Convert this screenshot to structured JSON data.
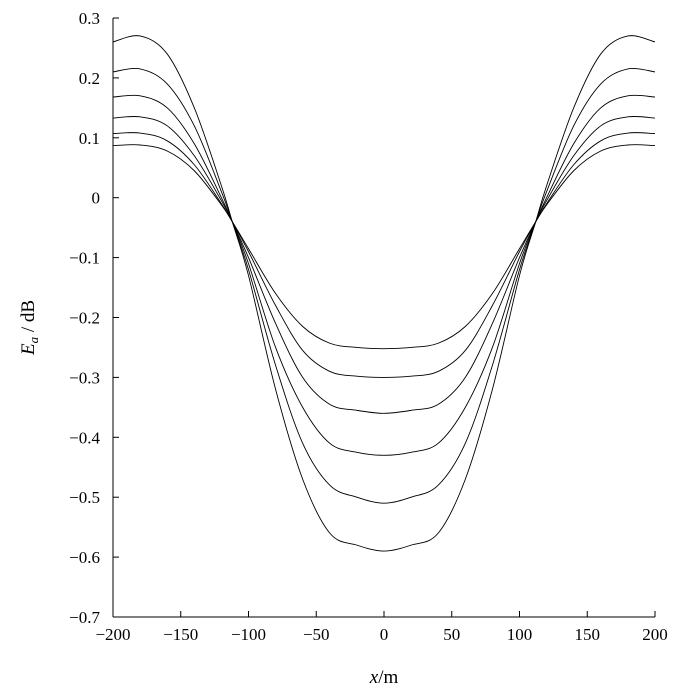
{
  "chart_data": {
    "type": "line",
    "title": "",
    "xlabel": "x/m",
    "ylabel": "E_a / dB",
    "xlim": [
      -200,
      200
    ],
    "ylim": [
      -0.7,
      0.3
    ],
    "x_ticks": [
      -200,
      -150,
      -100,
      -50,
      0,
      50,
      100,
      150,
      200
    ],
    "x_tick_labels": [
      "−200",
      "−150",
      "−100",
      "−50",
      "0",
      "50",
      "100",
      "150",
      "200"
    ],
    "y_ticks": [
      0.3,
      0.2,
      0.1,
      0,
      -0.1,
      -0.2,
      -0.3,
      -0.4,
      -0.5,
      -0.6,
      -0.7
    ],
    "y_tick_labels": [
      "0.3",
      "0.2",
      "0.1",
      "0",
      "−0.1",
      "−0.2",
      "−0.3",
      "−0.4",
      "−0.5",
      "−0.6",
      "−0.7"
    ],
    "grid": false,
    "x": [
      -200,
      -180,
      -160,
      -140,
      -120,
      -112,
      -100,
      -80,
      -60,
      -40,
      -20,
      0,
      20,
      40,
      60,
      80,
      100,
      112,
      120,
      140,
      160,
      180,
      200
    ],
    "series": [
      {
        "values": [
          0.26,
          0.27,
          0.24,
          0.15,
          0.02,
          -0.04,
          -0.13,
          -0.32,
          -0.47,
          -0.56,
          -0.58,
          -0.59,
          -0.58,
          -0.56,
          -0.47,
          -0.32,
          -0.13,
          -0.04,
          0.02,
          0.15,
          0.24,
          0.27,
          0.26
        ]
      },
      {
        "values": [
          0.21,
          0.215,
          0.19,
          0.12,
          0.01,
          -0.04,
          -0.12,
          -0.28,
          -0.41,
          -0.48,
          -0.5,
          -0.51,
          -0.5,
          -0.48,
          -0.41,
          -0.28,
          -0.12,
          -0.04,
          0.01,
          0.12,
          0.19,
          0.215,
          0.21
        ]
      },
      {
        "values": [
          0.168,
          0.17,
          0.15,
          0.09,
          0.0,
          -0.04,
          -0.11,
          -0.25,
          -0.35,
          -0.41,
          -0.425,
          -0.43,
          -0.425,
          -0.41,
          -0.35,
          -0.25,
          -0.11,
          -0.04,
          0.0,
          0.09,
          0.15,
          0.17,
          0.168
        ]
      },
      {
        "values": [
          0.133,
          0.135,
          0.12,
          0.07,
          -0.005,
          -0.04,
          -0.1,
          -0.21,
          -0.3,
          -0.345,
          -0.355,
          -0.36,
          -0.355,
          -0.345,
          -0.3,
          -0.21,
          -0.1,
          -0.04,
          -0.005,
          0.07,
          0.12,
          0.135,
          0.133
        ]
      },
      {
        "values": [
          0.107,
          0.108,
          0.095,
          0.055,
          -0.01,
          -0.04,
          -0.09,
          -0.18,
          -0.255,
          -0.29,
          -0.298,
          -0.3,
          -0.298,
          -0.29,
          -0.255,
          -0.18,
          -0.09,
          -0.04,
          -0.01,
          0.055,
          0.095,
          0.108,
          0.107
        ]
      },
      {
        "values": [
          0.087,
          0.088,
          0.078,
          0.045,
          -0.012,
          -0.04,
          -0.085,
          -0.16,
          -0.215,
          -0.243,
          -0.25,
          -0.252,
          -0.25,
          -0.243,
          -0.215,
          -0.16,
          -0.085,
          -0.04,
          -0.012,
          0.045,
          0.078,
          0.088,
          0.087
        ]
      }
    ]
  }
}
